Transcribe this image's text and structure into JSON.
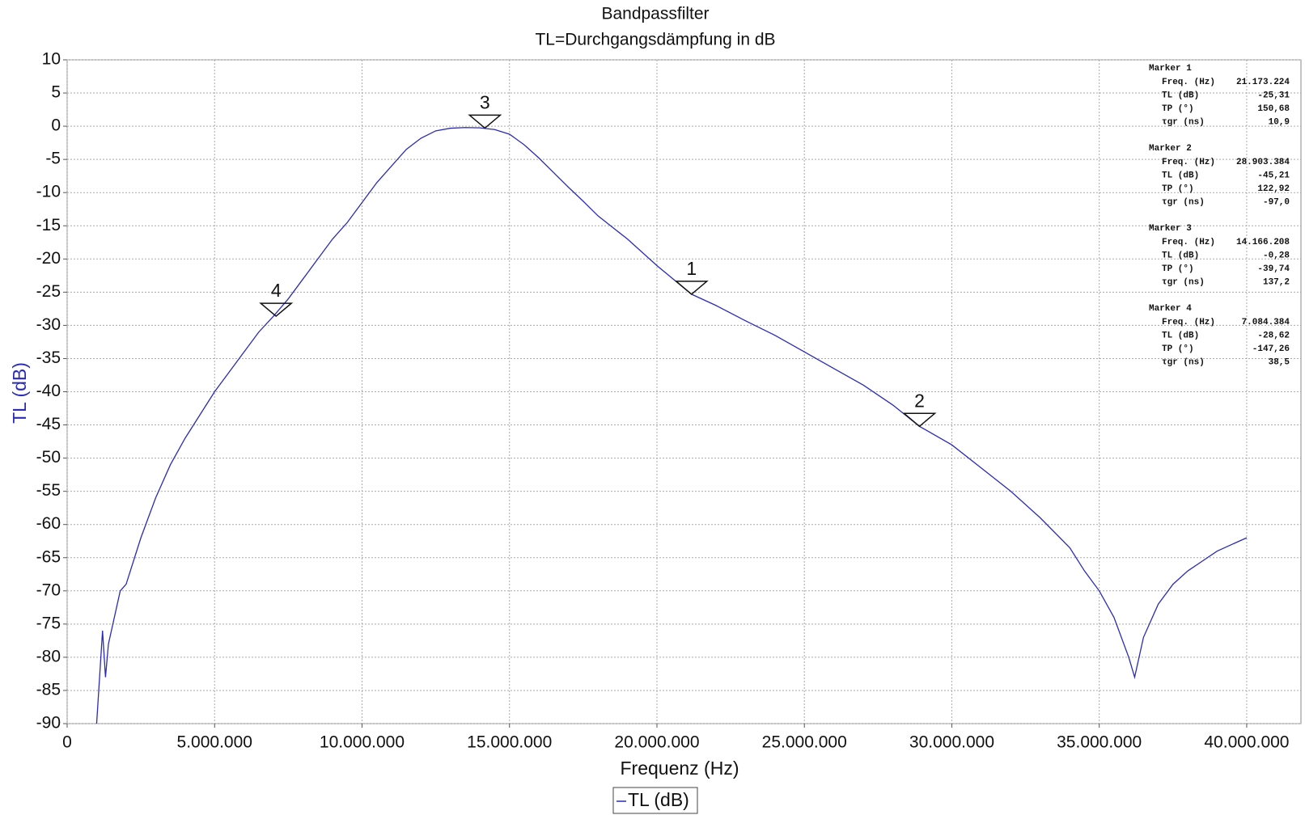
{
  "chart_data": {
    "type": "line",
    "title": "Bandpassfilter",
    "subtitle": "TL=Durchgangsdämpfung in dB",
    "x_label": "Frequenz (Hz)",
    "y_label": "TL (dB)",
    "x": [
      1000000,
      1100000,
      1200000,
      1300000,
      1400000,
      1600000,
      1800000,
      2000000,
      2500000,
      3000000,
      3500000,
      4000000,
      4500000,
      5000000,
      5500000,
      6000000,
      6500000,
      7000000,
      7500000,
      8000000,
      8500000,
      9000000,
      9500000,
      10000000,
      10500000,
      11000000,
      11500000,
      12000000,
      12500000,
      13000000,
      13500000,
      14000000,
      14500000,
      15000000,
      15500000,
      16000000,
      16500000,
      17000000,
      17500000,
      18000000,
      19000000,
      20000000,
      21173224,
      22000000,
      23000000,
      24000000,
      25000000,
      26000000,
      27000000,
      28000000,
      28903384,
      30000000,
      31000000,
      32000000,
      33000000,
      34000000,
      34500000,
      35000000,
      35500000,
      36000000,
      36200000,
      36500000,
      37000000,
      37500000,
      38000000,
      38500000,
      39000000,
      39500000,
      40000000
    ],
    "series": [
      {
        "name": "TL (dB)",
        "color": "#2b2bb8",
        "values": [
          -90,
          -83,
          -76,
          -83,
          -78,
          -74,
          -70,
          -69,
          -62,
          -56,
          -51,
          -47,
          -43.5,
          -40,
          -37,
          -34,
          -31,
          -28.6,
          -26,
          -23,
          -20,
          -17,
          -14.5,
          -11.5,
          -8.5,
          -6,
          -3.5,
          -1.8,
          -0.7,
          -0.3,
          -0.2,
          -0.25,
          -0.5,
          -1.2,
          -2.8,
          -4.8,
          -7,
          -9.2,
          -11.3,
          -13.5,
          -17,
          -21,
          -25.31,
          -27,
          -29.3,
          -31.5,
          -34,
          -36.5,
          -39,
          -42,
          -45.21,
          -48,
          -51.5,
          -55,
          -59,
          -63.5,
          -67,
          -70,
          -74,
          -80,
          -83,
          -77,
          -72,
          -69,
          -67,
          -65.5,
          -64,
          -63,
          -62
        ]
      }
    ],
    "xlim": [
      0,
      41840000
    ],
    "ylim": [
      -90,
      10
    ],
    "xticks": [
      0,
      {
        "value": 5000000,
        "label": "5.000.000"
      },
      {
        "value": 10000000,
        "label": "10.000.000"
      },
      {
        "value": 15000000,
        "label": "15.000.000"
      },
      {
        "value": 20000000,
        "label": "20.000.000"
      },
      {
        "value": 25000000,
        "label": "25.000.000"
      },
      {
        "value": 30000000,
        "label": "30.000.000"
      },
      {
        "value": 35000000,
        "label": "35.000.000"
      },
      {
        "value": 40000000,
        "label": "40.000.000"
      }
    ],
    "yticks": [
      10,
      5,
      0,
      -5,
      -10,
      -15,
      -20,
      -25,
      -30,
      -35,
      -40,
      -45,
      -50,
      -55,
      -60,
      -65,
      -70,
      -75,
      -80,
      -85,
      -90
    ],
    "grid": true,
    "markers": [
      {
        "name": "Marker 1",
        "label": "1",
        "x": 21173224,
        "y": -25.31,
        "rows": [
          {
            "name": "Freq. (Hz)",
            "value": 21173224,
            "label": "21.173.224"
          },
          {
            "name": "TL (dB)",
            "value": -25.31,
            "label": "-25,31"
          },
          {
            "name": "TP (°)",
            "value": 150.68,
            "label": "150,68"
          },
          {
            "name": "τgr (ns)",
            "value": 10.9,
            "label": "10,9"
          }
        ]
      },
      {
        "name": "Marker 2",
        "label": "2",
        "x": 28903384,
        "y": -45.21,
        "rows": [
          {
            "name": "Freq. (Hz)",
            "value": 28903384,
            "label": "28.903.384"
          },
          {
            "name": "TL (dB)",
            "value": -45.21,
            "label": "-45,21"
          },
          {
            "name": "TP (°)",
            "value": 122.92,
            "label": "122,92"
          },
          {
            "name": "τgr (ns)",
            "value": -97.0,
            "label": "-97,0"
          }
        ]
      },
      {
        "name": "Marker 3",
        "label": "3",
        "x": 14166208,
        "y": -0.28,
        "rows": [
          {
            "name": "Freq. (Hz)",
            "value": 14166208,
            "label": "14.166.208"
          },
          {
            "name": "TL (dB)",
            "value": -0.28,
            "label": "-0,28"
          },
          {
            "name": "TP (°)",
            "value": -39.74,
            "label": "-39,74"
          },
          {
            "name": "τgr (ns)",
            "value": 137.2,
            "label": "137,2"
          }
        ]
      },
      {
        "name": "Marker 4",
        "label": "4",
        "x": 7084384,
        "y": -28.62,
        "rows": [
          {
            "name": "Freq. (Hz)",
            "value": 7084384,
            "label": "7.084.384"
          },
          {
            "name": "TL (dB)",
            "value": -28.62,
            "label": "-28,62"
          },
          {
            "name": "TP (°)",
            "value": -147.26,
            "label": "-147,26"
          },
          {
            "name": "τgr (ns)",
            "value": 38.5,
            "label": "38,5"
          }
        ]
      }
    ]
  }
}
